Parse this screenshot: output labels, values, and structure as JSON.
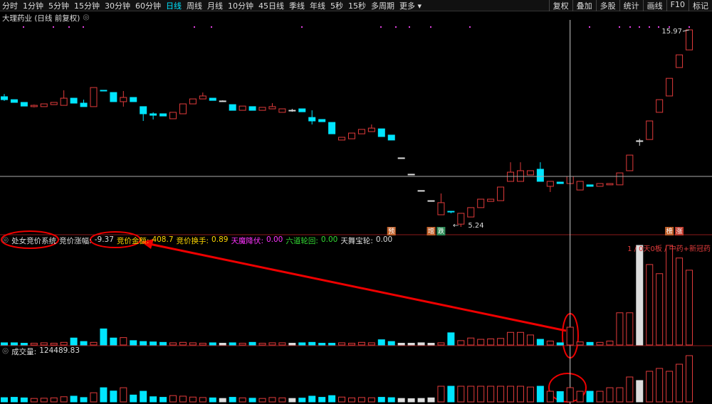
{
  "toolbar": {
    "periods": [
      "分时",
      "1分钟",
      "5分钟",
      "15分钟",
      "30分钟",
      "60分钟",
      "日线",
      "周线",
      "月线",
      "10分钟",
      "45日线",
      "季线",
      "年线",
      "5秒",
      "15秒",
      "多周期",
      "更多 ▾"
    ],
    "tools": [
      "复权",
      "叠加",
      "多股",
      "统计",
      "画线",
      "F10",
      "标记"
    ]
  },
  "chart_data": [
    {
      "type": "candlestick",
      "title": "大理药业 (日线 前复权)",
      "up_color": "#e03b3b",
      "down_color": "#00e5ff",
      "flat_color": "#dddddd",
      "cursor_index": 57,
      "open": [
        12.33,
        12.17,
        12.02,
        11.79,
        11.79,
        11.9,
        11.86,
        12.25,
        11.98,
        11.79,
        12.68,
        12.56,
        12.06,
        12.29,
        11.79,
        11.4,
        11.4,
        11.13,
        11.4,
        11.94,
        12.21,
        12.25,
        12.1,
        11.9,
        11.59,
        11.79,
        11.59,
        11.67,
        11.48,
        11.59,
        11.67,
        11.2,
        11.09,
        10.93,
        9.97,
        10.04,
        10.31,
        10.43,
        10.58,
        10.24,
        9.0,
        8.11,
        7.22,
        6.67,
        5.9,
        6.09,
        5.39,
        5.78,
        6.29,
        6.63,
        6.67,
        7.72,
        7.72,
        8.07,
        8.38,
        7.45,
        7.68,
        7.6,
        7.25,
        7.53,
        7.45,
        7.53,
        7.53,
        8.3,
        9.93,
        10.0,
        11.48,
        12.37,
        13.92,
        14.88
      ],
      "close": [
        12.17,
        12.02,
        11.82,
        11.86,
        11.94,
        12.02,
        12.25,
        11.98,
        11.79,
        12.83,
        12.64,
        12.06,
        12.29,
        12.06,
        11.4,
        11.32,
        11.28,
        11.48,
        11.94,
        12.21,
        12.37,
        12.13,
        12.1,
        11.59,
        11.82,
        11.59,
        11.75,
        11.79,
        11.67,
        11.59,
        11.51,
        11.01,
        10.97,
        10.31,
        10.12,
        10.35,
        10.55,
        10.62,
        10.16,
        9.97,
        9.0,
        8.11,
        7.22,
        6.67,
        6.56,
        6.05,
        5.98,
        6.29,
        6.75,
        6.75,
        7.41,
        8.22,
        8.3,
        8.3,
        7.72,
        7.72,
        7.6,
        7.99,
        7.72,
        7.45,
        7.6,
        7.6,
        8.18,
        9.15,
        9.93,
        11.01,
        12.17,
        13.33,
        14.61,
        15.97
      ],
      "high": [
        12.48,
        12.17,
        12.02,
        11.9,
        11.94,
        12.02,
        12.68,
        12.25,
        12.17,
        12.83,
        12.68,
        12.56,
        12.64,
        12.29,
        11.79,
        11.48,
        11.4,
        11.48,
        11.94,
        12.21,
        12.56,
        12.25,
        12.13,
        11.9,
        11.82,
        11.79,
        11.75,
        11.98,
        11.67,
        11.67,
        11.67,
        11.59,
        11.09,
        10.93,
        10.12,
        10.35,
        10.55,
        10.82,
        10.58,
        10.24,
        9.0,
        8.11,
        7.22,
        6.67,
        7.06,
        6.09,
        5.98,
        6.29,
        6.75,
        6.75,
        7.41,
        8.76,
        8.76,
        8.3,
        8.76,
        7.72,
        7.68,
        7.99,
        7.72,
        7.53,
        7.6,
        7.6,
        8.18,
        9.15,
        10.04,
        11.01,
        12.17,
        13.33,
        14.61,
        15.97
      ],
      "low": [
        12.1,
        12.02,
        11.82,
        11.75,
        11.79,
        11.9,
        11.86,
        11.98,
        11.79,
        11.79,
        12.64,
        12.06,
        11.79,
        12.06,
        11.01,
        11.09,
        11.28,
        11.13,
        11.4,
        11.94,
        12.21,
        12.13,
        12.06,
        11.59,
        11.59,
        11.59,
        11.59,
        11.67,
        11.48,
        11.51,
        11.51,
        10.82,
        10.97,
        10.31,
        9.97,
        10.04,
        10.31,
        10.43,
        10.16,
        9.97,
        9.0,
        8.11,
        7.22,
        6.67,
        5.9,
        5.98,
        5.24,
        5.78,
        6.29,
        6.63,
        6.67,
        7.72,
        7.72,
        8.07,
        7.72,
        7.14,
        7.6,
        7.6,
        7.25,
        7.45,
        7.45,
        7.53,
        7.53,
        8.3,
        9.66,
        10.0,
        11.48,
        12.37,
        13.92,
        14.88
      ],
      "signals": [
        null,
        null,
        null,
        null,
        null,
        null,
        null,
        null,
        null,
        null,
        null,
        null,
        null,
        null,
        null,
        null,
        null,
        null,
        null,
        null,
        null,
        null,
        null,
        null,
        null,
        null,
        null,
        null,
        null,
        null,
        null,
        null,
        null,
        null,
        null,
        null,
        null,
        null,
        null,
        "预",
        null,
        null,
        null,
        "增",
        "跌",
        null,
        null,
        null,
        null,
        null,
        null,
        null,
        null,
        null,
        null,
        null,
        null,
        null,
        null,
        null,
        null,
        null,
        null,
        null,
        null,
        null,
        null,
        "榜",
        "涨",
        null
      ]
    },
    {
      "type": "bar",
      "title": "处女竞价系统",
      "annotation": "1 / 0天0板 / 中药+新冠药",
      "readouts": [
        {
          "name": "竞价涨幅",
          "value": -9.37,
          "color": "#dddddd"
        },
        {
          "name": "竞价换手",
          "value": 0.89,
          "color": "#ffd700"
        },
        {
          "name": "天魔降伏",
          "value": 0.0,
          "color": "#ff33ff"
        },
        {
          "name": "六道轮回",
          "value": 0.0,
          "color": "#33dd33"
        },
        {
          "name": "天舞宝轮",
          "value": 0.0,
          "color": "#dddddd"
        }
      ],
      "series": [
        {
          "name": "竞价金额",
          "color": "#ffd700",
          "values": [
            50,
            50,
            40,
            40,
            50,
            40,
            60,
            160,
            80,
            60,
            370,
            160,
            170,
            100,
            80,
            70,
            60,
            50,
            60,
            50,
            40,
            50,
            40,
            50,
            40,
            60,
            40,
            50,
            50,
            40,
            50,
            60,
            40,
            40,
            50,
            40,
            60,
            50,
            120,
            80,
            40,
            40,
            50,
            40,
            50,
            280,
            100,
            160,
            130,
            140,
            150,
            290,
            290,
            230,
            130,
            90,
            50,
            408.7,
            70,
            60,
            60,
            90,
            740,
            740,
            2290,
            1850,
            1640,
            2290,
            2000,
            1720
          ]
        }
      ]
    },
    {
      "type": "bar",
      "title": "成交量",
      "values": [
        37000,
        40000,
        35000,
        30000,
        32000,
        35000,
        45000,
        50000,
        38000,
        80000,
        124000,
        95000,
        124000,
        60000,
        93000,
        45000,
        40000,
        55000,
        50000,
        42000,
        38000,
        35000,
        30000,
        40000,
        35000,
        32000,
        30000,
        38000,
        35000,
        30000,
        33000,
        50000,
        40000,
        55000,
        42000,
        35000,
        38000,
        36000,
        40000,
        37000,
        30000,
        28000,
        30000,
        35000,
        137000,
        137000,
        137000,
        137000,
        137000,
        137000,
        137000,
        137000,
        137000,
        130000,
        137000,
        93000,
        90000,
        124489.83,
        93000,
        93000,
        93000,
        124000,
        124000,
        218000,
        187000,
        268000,
        293000,
        268000,
        330000,
        405000
      ]
    }
  ]
}
